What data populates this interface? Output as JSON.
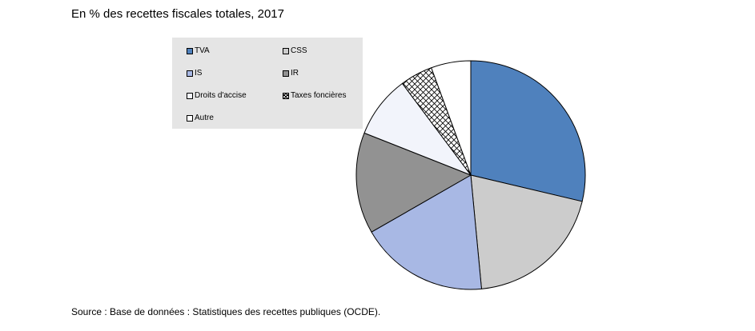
{
  "chart_data": {
    "type": "pie",
    "title": "",
    "subtitle": "En % des recettes fiscales totales, 2017",
    "slices": [
      {
        "label": "TVA",
        "value": 28.7,
        "color": "#4f81bd",
        "pattern": "solid"
      },
      {
        "label": "CSS",
        "value": 19.8,
        "color": "#cccccc",
        "pattern": "solid"
      },
      {
        "label": "IS",
        "value": 18.2,
        "color": "#a8b8e4",
        "pattern": "solid"
      },
      {
        "label": "IR",
        "value": 14.3,
        "color": "#929292",
        "pattern": "solid"
      },
      {
        "label": "Droits d'accise",
        "value": 8.8,
        "color": "#f2f4fb",
        "pattern": "solid"
      },
      {
        "label": "Taxes foncières",
        "value": 4.6,
        "color": "#ffffff",
        "pattern": "crosshatch"
      },
      {
        "label": "Autre",
        "value": 5.6,
        "color": "#ffffff",
        "pattern": "solid"
      }
    ],
    "legend_position": "left",
    "start_angle_deg": 0,
    "direction": "clockwise"
  },
  "source": "Source : Base de données : Statistiques des recettes publiques (OCDE)."
}
